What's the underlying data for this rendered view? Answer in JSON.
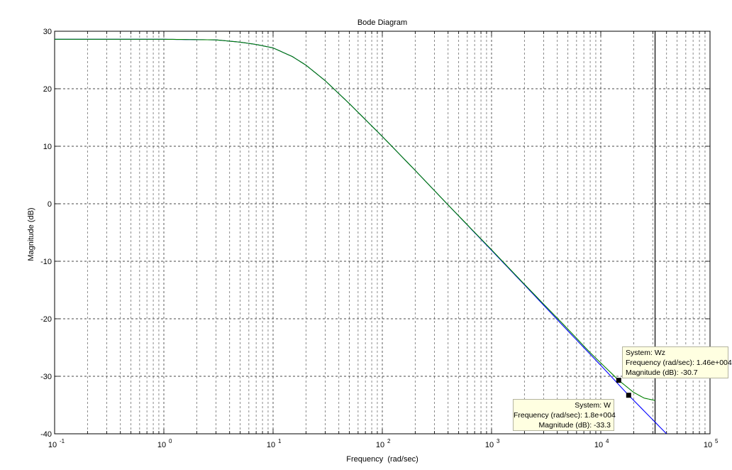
{
  "chart_data": {
    "type": "line",
    "title": "Bode Diagram",
    "xlabel": "Frequency  (rad/sec)",
    "ylabel": "Magnitude (dB)",
    "xscale": "log",
    "xlim": [
      0.1,
      100000
    ],
    "ylim": [
      -40,
      30
    ],
    "grid": true,
    "x_ticks": [
      {
        "base": "10",
        "exp": "-1"
      },
      {
        "base": "10",
        "exp": "0"
      },
      {
        "base": "10",
        "exp": "1"
      },
      {
        "base": "10",
        "exp": "2"
      },
      {
        "base": "10",
        "exp": "3"
      },
      {
        "base": "10",
        "exp": "4"
      },
      {
        "base": "10",
        "exp": "5"
      }
    ],
    "y_ticks": [
      "30",
      "20",
      "10",
      "0",
      "-10",
      "-20",
      "-30",
      "-40"
    ],
    "nyquist_frequency": 31400,
    "series": [
      {
        "name": "W",
        "color": "#0000ff",
        "points": [
          [
            0.1,
            28.6
          ],
          [
            1,
            28.6
          ],
          [
            3,
            28.5
          ],
          [
            5,
            28.1
          ],
          [
            7,
            27.7
          ],
          [
            10,
            27.1
          ],
          [
            15,
            25.6
          ],
          [
            20,
            24.1
          ],
          [
            30,
            21.4
          ],
          [
            50,
            17.4
          ],
          [
            100,
            11.7
          ],
          [
            200,
            5.8
          ],
          [
            400,
            -0.2
          ],
          [
            1000,
            -8.1
          ],
          [
            2000,
            -14.1
          ],
          [
            5000,
            -22.1
          ],
          [
            10000,
            -28.1
          ],
          [
            18000,
            -33.3
          ],
          [
            40000,
            -40.0
          ]
        ]
      },
      {
        "name": "Wz",
        "color": "#008000",
        "points": [
          [
            0.1,
            28.6
          ],
          [
            1,
            28.6
          ],
          [
            3,
            28.5
          ],
          [
            5,
            28.1
          ],
          [
            7,
            27.7
          ],
          [
            10,
            27.1
          ],
          [
            15,
            25.6
          ],
          [
            20,
            24.1
          ],
          [
            30,
            21.4
          ],
          [
            50,
            17.4
          ],
          [
            100,
            11.7
          ],
          [
            200,
            5.8
          ],
          [
            400,
            -0.2
          ],
          [
            1000,
            -8.0
          ],
          [
            2000,
            -14.0
          ],
          [
            5000,
            -21.8
          ],
          [
            8000,
            -25.9
          ],
          [
            14600,
            -30.7
          ],
          [
            20000,
            -32.8
          ],
          [
            25000,
            -33.8
          ],
          [
            31400,
            -34.2
          ]
        ]
      }
    ]
  },
  "datatips": {
    "wz": {
      "system": "System: Wz",
      "frequency": "Frequency (rad/sec): 1.46e+004",
      "magnitude": "Magnitude (dB): -30.7",
      "marker_x": 14600,
      "marker_y": -30.7
    },
    "w": {
      "system": "System: W",
      "frequency": "Frequency (rad/sec): 1.8e+004",
      "magnitude": "Magnitude (dB): -33.3",
      "marker_x": 18000,
      "marker_y": -33.3
    }
  }
}
